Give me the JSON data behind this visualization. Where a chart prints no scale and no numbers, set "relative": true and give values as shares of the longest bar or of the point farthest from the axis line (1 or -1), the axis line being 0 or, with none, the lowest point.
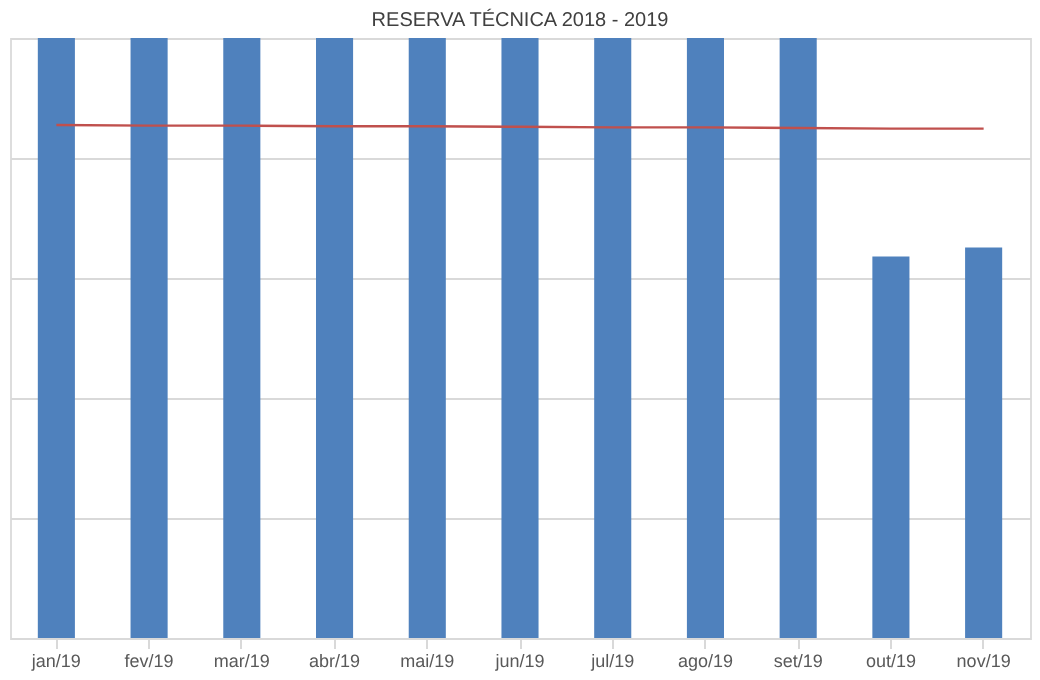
{
  "chart_data": {
    "type": "bar",
    "title": "RESERVA TÉCNICA  2018 - 2019",
    "relative": true,
    "grid": "y",
    "categories": [
      "jan/19",
      "fev/19",
      "mar/19",
      "abr/19",
      "mai/19",
      "jun/19",
      "jul/19",
      "ago/19",
      "set/19",
      "out/19",
      "nov/19"
    ],
    "series": [
      {
        "color": "#4f81bd",
        "values": [
          1,
          1,
          1,
          1,
          1,
          1,
          1,
          1,
          1,
          0.636,
          0.651
        ]
      },
      {
        "type": "line",
        "color": "#c0504d",
        "values": [
          0.855,
          0.854,
          0.854,
          0.853,
          0.853,
          0.852,
          0.851,
          0.851,
          0.85,
          0.849,
          0.849
        ]
      }
    ]
  }
}
